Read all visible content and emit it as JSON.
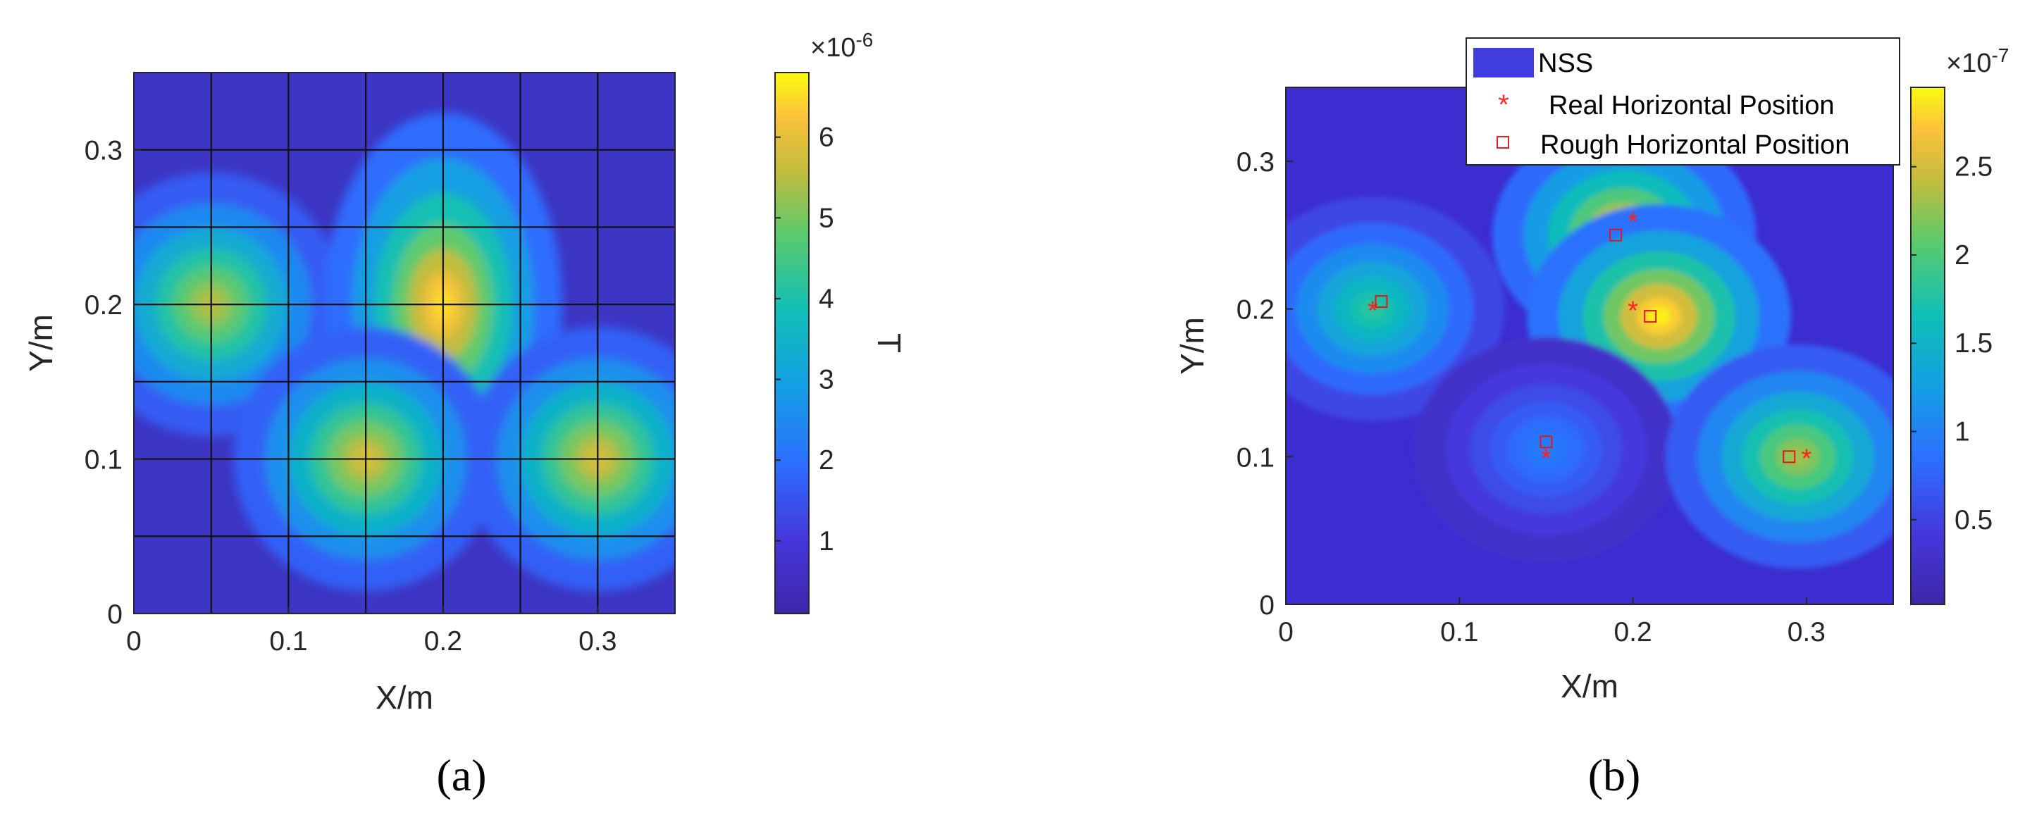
{
  "chart_data": [
    {
      "panel_label": "(a)",
      "type": "heatmap",
      "xlabel": "X/m",
      "ylabel": "Y/m",
      "xlim": [
        0,
        0.35
      ],
      "ylim": [
        0,
        0.35
      ],
      "xticks": [
        "0",
        "0.1",
        "0.2",
        "0.3"
      ],
      "yticks": [
        "0",
        "0.1",
        "0.2",
        "0.3"
      ],
      "grid": true,
      "grid_spacing": 0.05,
      "colormap": "parula",
      "colorbar": {
        "label": "T",
        "exponent": "×10",
        "exponent_power": "-6",
        "range": [
          0.1,
          6.8
        ],
        "ticks": [
          "1",
          "2",
          "3",
          "4",
          "5",
          "6"
        ]
      },
      "peaks": [
        {
          "x": 0.05,
          "y": 0.2,
          "value": 5.5
        },
        {
          "x": 0.2,
          "y": 0.2,
          "value": 6.5
        },
        {
          "x": 0.15,
          "y": 0.1,
          "value": 5.8
        },
        {
          "x": 0.3,
          "y": 0.1,
          "value": 5.8
        }
      ]
    },
    {
      "panel_label": "(b)",
      "type": "heatmap",
      "xlabel": "X/m",
      "ylabel": "Y/m",
      "xlim": [
        0,
        0.35
      ],
      "ylim": [
        0,
        0.35
      ],
      "xticks": [
        "0",
        "0.1",
        "0.2",
        "0.3"
      ],
      "yticks": [
        "0",
        "0.1",
        "0.2",
        "0.3"
      ],
      "grid": false,
      "colormap": "parula",
      "colorbar": {
        "label": "",
        "exponent": "×10",
        "exponent_power": "-7",
        "range": [
          0.02,
          2.95
        ],
        "ticks": [
          "0.5",
          "1",
          "1.5",
          "2",
          "2.5"
        ]
      },
      "legend": {
        "placement": "top-right",
        "entries": [
          "NSS",
          "Real Horizontal Position",
          "Rough Horizontal Position"
        ]
      },
      "peaks": [
        {
          "x": 0.05,
          "y": 0.2,
          "value": 1.8
        },
        {
          "x": 0.195,
          "y": 0.25,
          "value": 2.7
        },
        {
          "x": 0.215,
          "y": 0.195,
          "value": 2.9
        },
        {
          "x": 0.15,
          "y": 0.105,
          "value": 0.95
        },
        {
          "x": 0.295,
          "y": 0.1,
          "value": 2.3
        }
      ],
      "real_positions": [
        {
          "x": 0.05,
          "y": 0.2
        },
        {
          "x": 0.2,
          "y": 0.26
        },
        {
          "x": 0.2,
          "y": 0.2
        },
        {
          "x": 0.15,
          "y": 0.1
        },
        {
          "x": 0.3,
          "y": 0.1
        }
      ],
      "rough_positions": [
        {
          "x": 0.055,
          "y": 0.205
        },
        {
          "x": 0.19,
          "y": 0.25
        },
        {
          "x": 0.21,
          "y": 0.195
        },
        {
          "x": 0.15,
          "y": 0.11
        },
        {
          "x": 0.29,
          "y": 0.1
        }
      ]
    }
  ]
}
